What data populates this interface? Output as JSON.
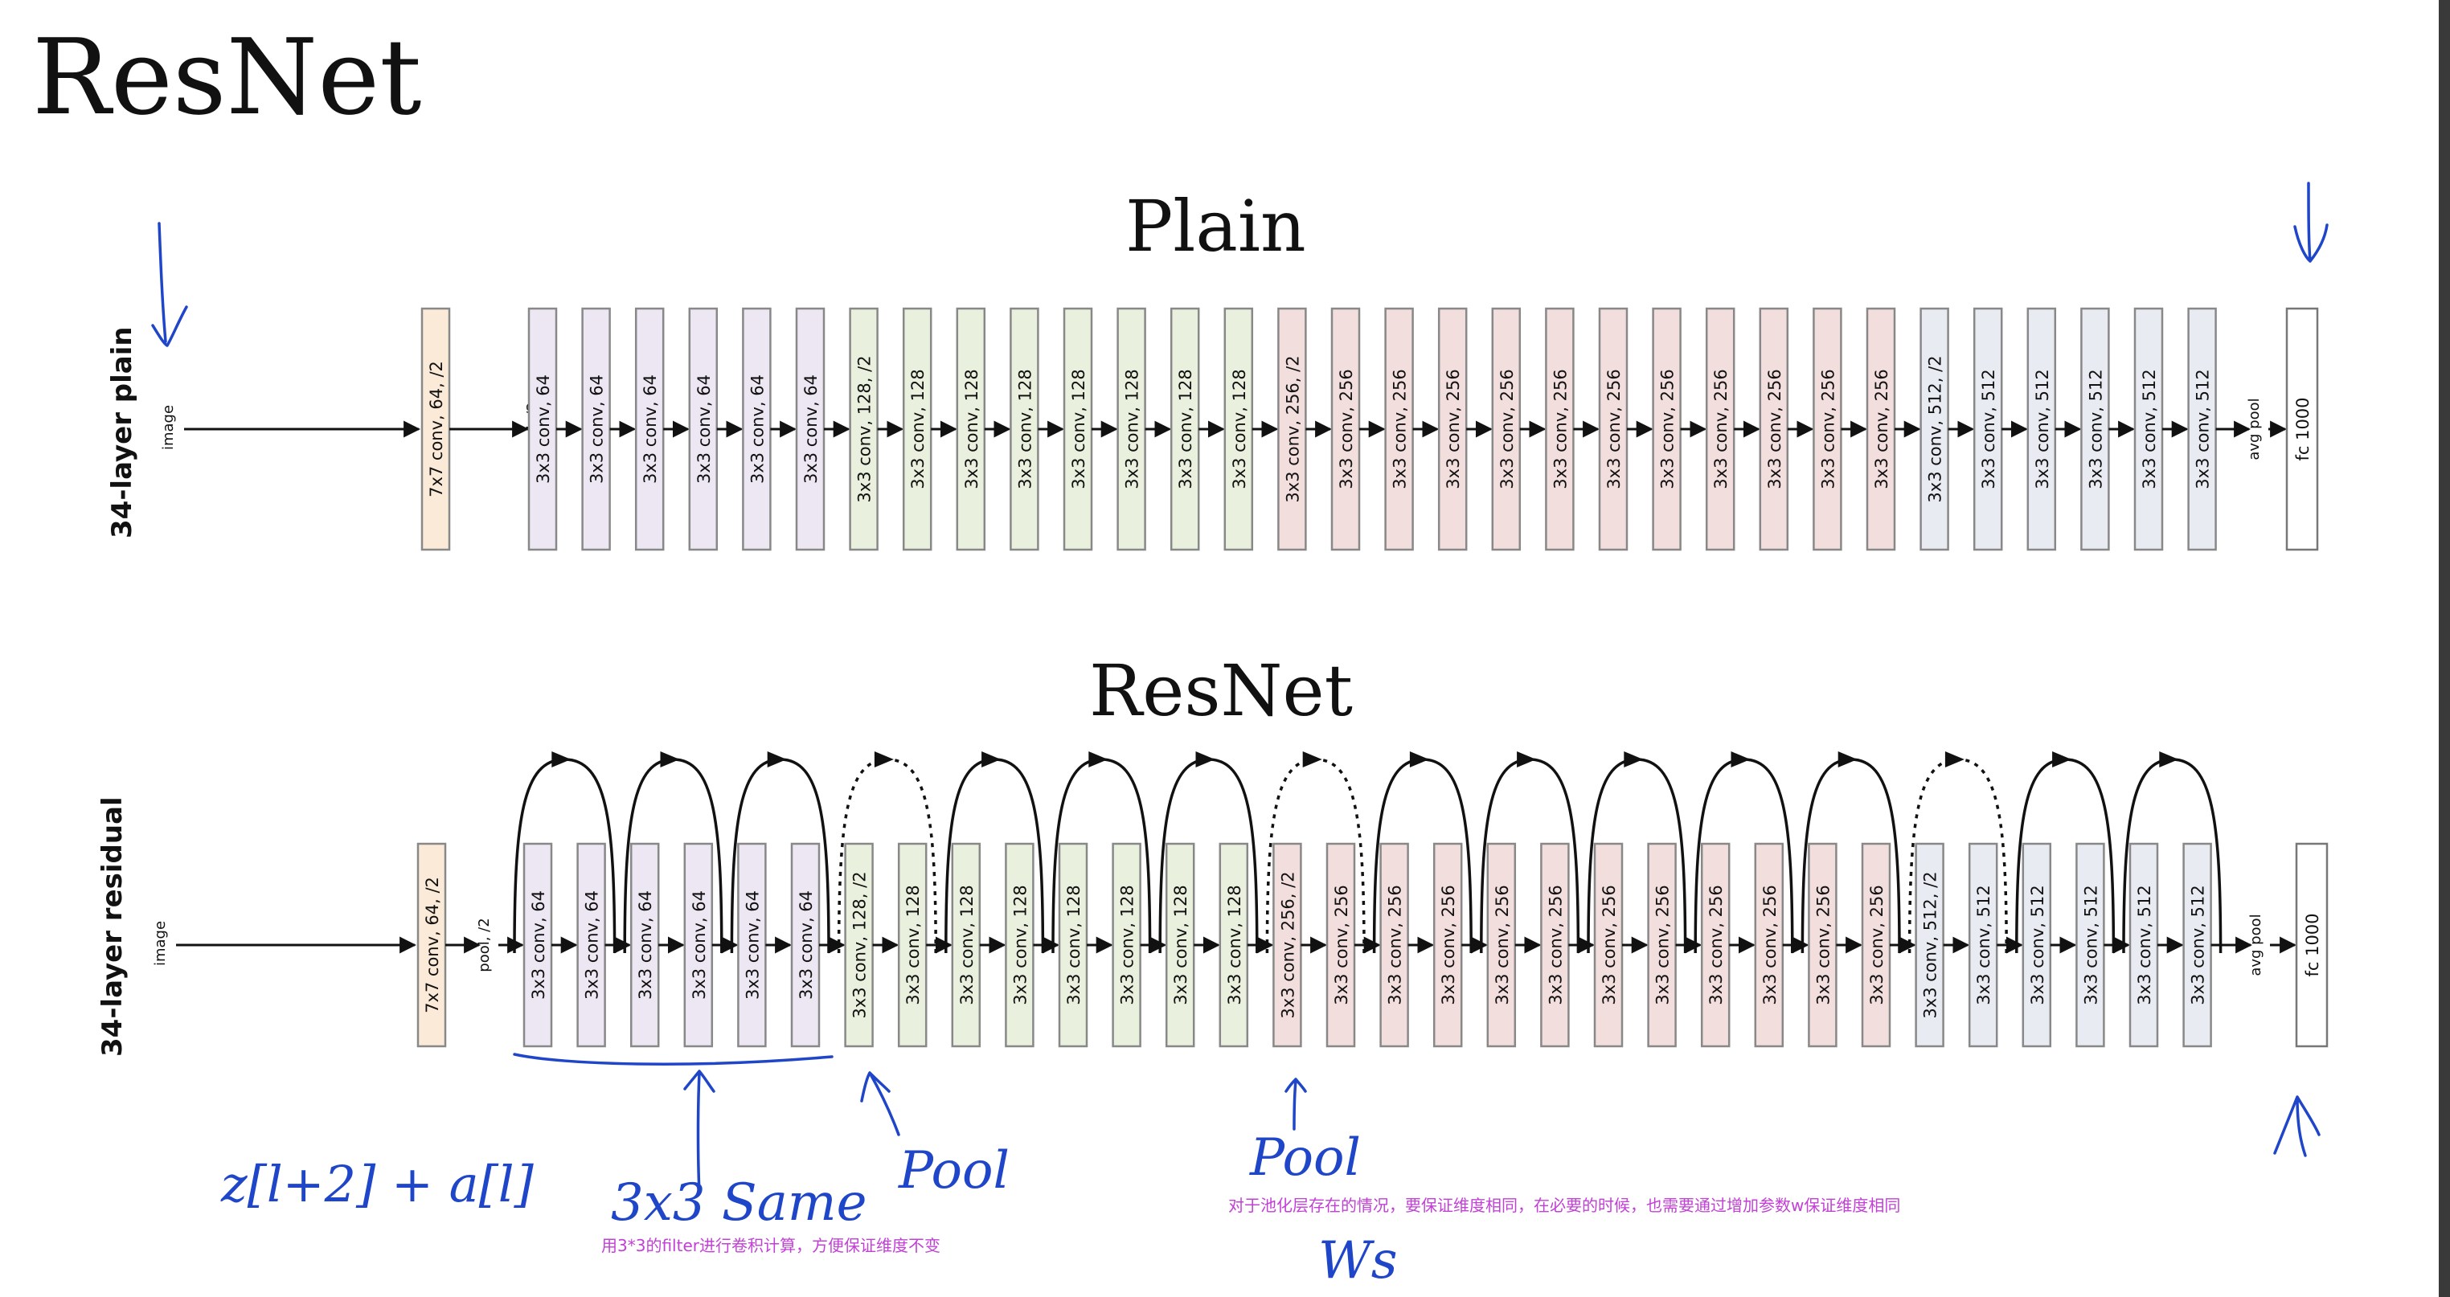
{
  "title": "ResNet",
  "plain": {
    "heading": "Plain",
    "net_label": "34-layer plain",
    "input_label": "image"
  },
  "resnet": {
    "heading": "ResNet",
    "net_label": "34-layer residual",
    "input_label": "image"
  },
  "layers": {
    "first_conv": "7x7 conv, 64, /2",
    "pool": "pool, /2",
    "avg_pool": "avg pool",
    "fc": "fc 1000",
    "convs": [
      "3x3 conv, 64",
      "3x3 conv, 64",
      "3x3 conv, 64",
      "3x3 conv, 64",
      "3x3 conv, 64",
      "3x3 conv, 64",
      "3x3 conv, 128, /2",
      "3x3 conv, 128",
      "3x3 conv, 128",
      "3x3 conv, 128",
      "3x3 conv, 128",
      "3x3 conv, 128",
      "3x3 conv, 128",
      "3x3 conv, 128",
      "3x3 conv, 256, /2",
      "3x3 conv, 256",
      "3x3 conv, 256",
      "3x3 conv, 256",
      "3x3 conv, 256",
      "3x3 conv, 256",
      "3x3 conv, 256",
      "3x3 conv, 256",
      "3x3 conv, 256",
      "3x3 conv, 256",
      "3x3 conv, 256",
      "3x3 conv, 256",
      "3x3 conv, 512, /2",
      "3x3 conv, 512",
      "3x3 conv, 512",
      "3x3 conv, 512",
      "3x3 conv, 512",
      "3x3 conv, 512"
    ]
  },
  "colors": {
    "first_conv_fill": "#fbead8",
    "group_64_fill": "#ece7f2",
    "group_128_fill": "#e9f1de",
    "group_256_fill": "#f3dede",
    "group_512_fill": "#e9ebf3",
    "fc_fill": "#ffffff",
    "box_stroke": "#888888",
    "ink": "#1f46c8",
    "note": "#c240d6"
  },
  "annotations": {
    "formula": "z[l+2] + a[l]",
    "same_label": "3x3 Same",
    "pool_label_1": "Pool",
    "pool_label_2": "Pool",
    "ws_label": "Ws",
    "note_pool": "对于池化层存在的情况，要保证维度相同，在必要的时候，也需要通过增加参数w保证维度相同",
    "note_same": "用3*3的filter进行卷积计算，方便保证维度不变"
  }
}
